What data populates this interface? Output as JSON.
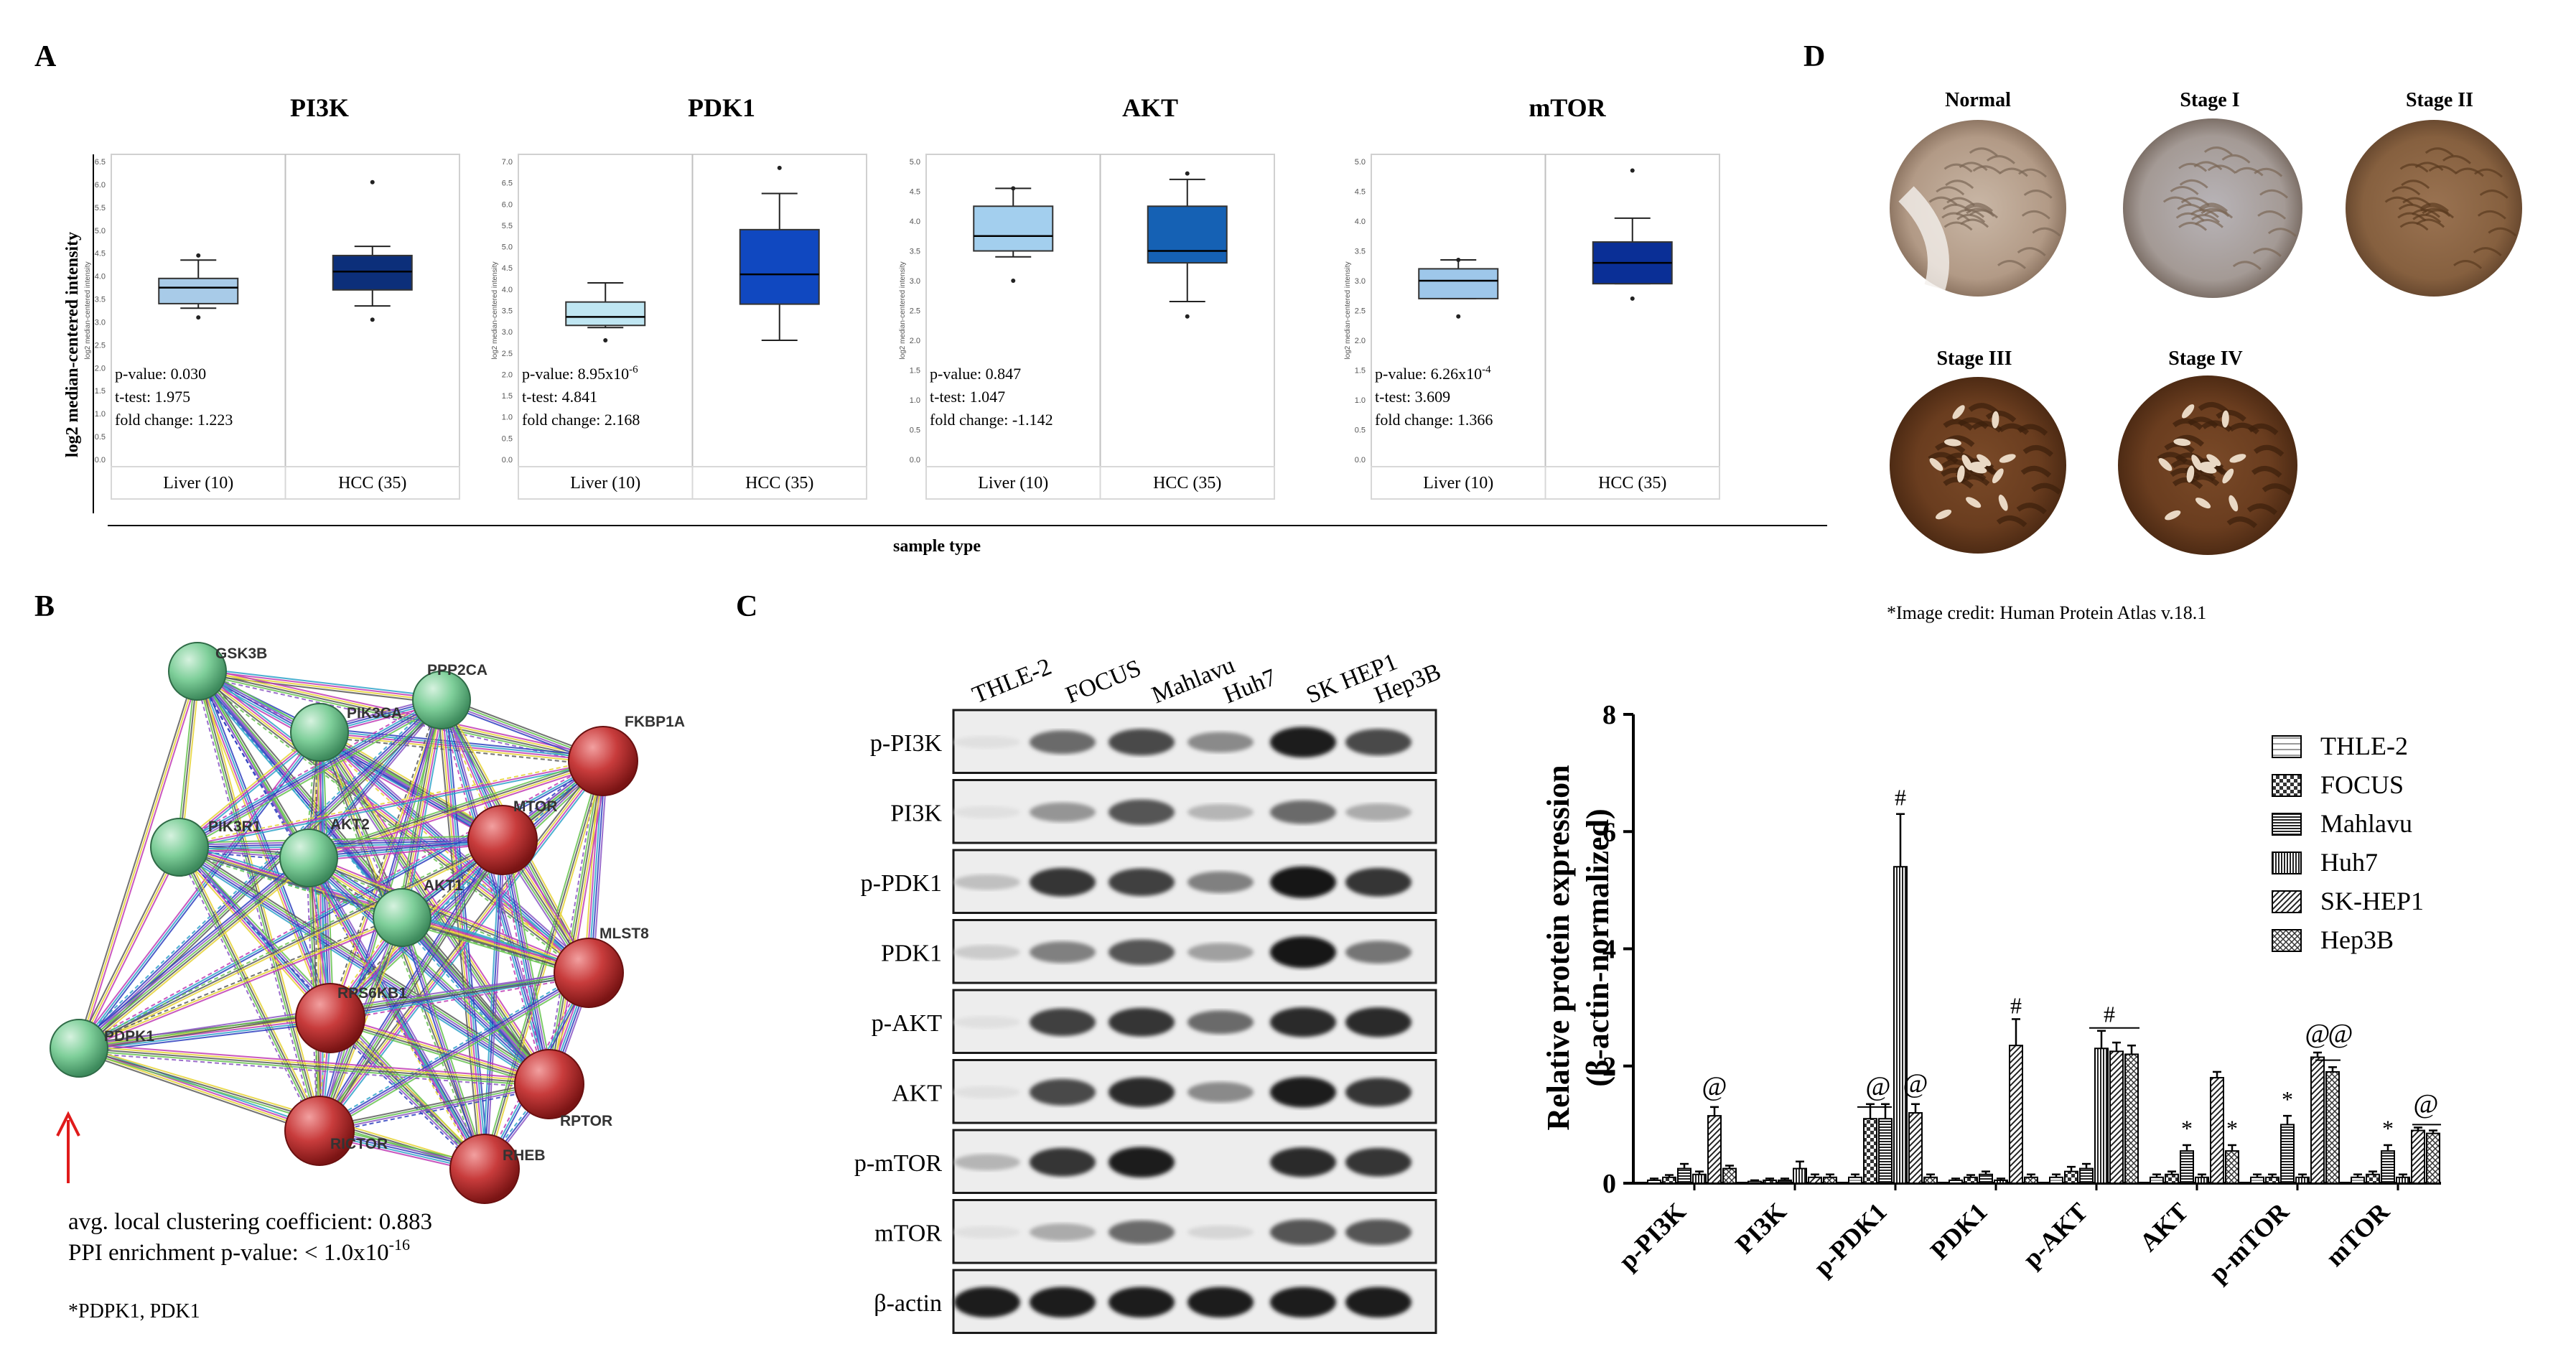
{
  "figure": {
    "panel_a": {
      "label": "A",
      "ylabel": "log2 median-centered intensity",
      "xlabel": "sample type",
      "inner_ylabel": "log2 median-centered intensity",
      "plots": [
        {
          "title": "PI3K",
          "categories": [
            "Liver (10)",
            "HCC (35)"
          ],
          "ticks": [
            "6.5",
            "6.0",
            "5.5",
            "5.0",
            "4.5",
            "4.0",
            "3.5",
            "3.0",
            "2.5",
            "2.0",
            "1.5",
            "1.0",
            "0.5",
            "0.0"
          ],
          "pvalue": "p-value:  0.030",
          "ttest": "t-test:    1.975",
          "fold": "fold change: 1.223"
        },
        {
          "title": "PDK1",
          "categories": [
            "Liver (10)",
            "HCC (35)"
          ],
          "ticks": [
            "7.0",
            "6.5",
            "6.0",
            "5.5",
            "5.0",
            "4.5",
            "4.0",
            "3.5",
            "3.0",
            "2.5",
            "2.0",
            "1.5",
            "1.0",
            "0.5",
            "0.0"
          ],
          "pvalue": "p-value:  8.95x10",
          "pvalue_exp": "-6",
          "ttest": "t-test:    4.841",
          "fold": "fold change: 2.168"
        },
        {
          "title": "AKT",
          "categories": [
            "Liver (10)",
            "HCC (35)"
          ],
          "ticks": [
            "5.0",
            "4.5",
            "4.0",
            "3.5",
            "3.0",
            "2.5",
            "2.0",
            "1.5",
            "1.0",
            "0.5",
            "0.0"
          ],
          "pvalue": "p-value:  0.847",
          "ttest": "t-test:    1.047",
          "fold": "fold change: -1.142"
        },
        {
          "title": "mTOR",
          "categories": [
            "Liver (10)",
            "HCC (35)"
          ],
          "ticks": [
            "5.0",
            "4.5",
            "4.0",
            "3.5",
            "3.0",
            "2.5",
            "2.0",
            "1.5",
            "1.0",
            "0.5",
            "0.0"
          ],
          "pvalue": "p-value:  6.26x10",
          "pvalue_exp": "-4",
          "ttest": " t-test:    3.609",
          "fold": "fold change: 1.366"
        }
      ]
    },
    "panel_b": {
      "label": "B",
      "nodes": [
        "GSK3B",
        "PIK3CA",
        "PPP2CA",
        "FKBP1A",
        "PIK3R1",
        "AKT2",
        "MTOR",
        "AKT1",
        "RPS6KB1",
        "MLST8",
        "PDPK1",
        "RICTOR",
        "RPTOR",
        "RHEB"
      ],
      "clustering": "avg. local clustering coefficient: 0.883",
      "ppi": "PPI enrichment p-value: < 1.0x10",
      "ppi_exp": "-16",
      "footnote": "*PDPK1, PDK1"
    },
    "panel_c": {
      "label": "C",
      "cell_lines": [
        "THLE-2",
        "FOCUS",
        "Mahlavu",
        "Huh7",
        "SK HEP1",
        "Hep3B"
      ],
      "blot_rows": [
        "p-PI3K",
        "PI3K",
        "p-PDK1",
        "PDK1",
        "p-AKT",
        "AKT",
        "p-mTOR",
        "mTOR",
        "β-actin"
      ],
      "ylabel_line1": "Relative protein expression",
      "ylabel_line2": "(β-actin-normalized)",
      "yticks": [
        "0",
        "2",
        "4",
        "6",
        "8"
      ],
      "annotations": [
        "@",
        "@",
        "@",
        "#",
        "#",
        "#",
        "*",
        "*",
        "*",
        "@",
        "@",
        "*",
        "@"
      ],
      "legend": [
        "THLE-2",
        "FOCUS",
        "Mahlavu",
        "Huh7",
        "SK-HEP1",
        "Hep3B"
      ]
    },
    "panel_d": {
      "label": "D",
      "stages": [
        "Normal",
        "Stage I",
        "Stage II",
        "Stage III",
        "Stage IV"
      ],
      "credit": "*Image credit: Human Protein Atlas v.18.1"
    }
  },
  "chart_data": [
    {
      "type": "box",
      "title": "PI3K",
      "categories": [
        "Liver (10)",
        "HCC (35)"
      ],
      "ylim": [
        0,
        6.5
      ],
      "boxes": [
        {
          "whisker_low": 3.3,
          "q1": 3.4,
          "median": 3.75,
          "q3": 3.95,
          "whisker_high": 4.35,
          "outliers": [
            3.1,
            4.45
          ]
        },
        {
          "whisker_low": 3.35,
          "q1": 3.7,
          "median": 4.1,
          "q3": 4.45,
          "whisker_high": 4.65,
          "outliers": [
            3.05,
            6.05
          ]
        }
      ]
    },
    {
      "type": "box",
      "title": "PDK1",
      "categories": [
        "Liver (10)",
        "HCC (35)"
      ],
      "ylim": [
        0,
        7.0
      ],
      "boxes": [
        {
          "whisker_low": 3.1,
          "q1": 3.15,
          "median": 3.35,
          "q3": 3.7,
          "whisker_high": 4.15,
          "outliers": [
            2.8
          ]
        },
        {
          "whisker_low": 2.8,
          "q1": 3.65,
          "median": 4.35,
          "q3": 5.4,
          "whisker_high": 6.25,
          "outliers": [
            6.85
          ]
        }
      ]
    },
    {
      "type": "box",
      "title": "AKT",
      "categories": [
        "Liver (10)",
        "HCC (35)"
      ],
      "ylim": [
        0,
        5.0
      ],
      "boxes": [
        {
          "whisker_low": 3.4,
          "q1": 3.5,
          "median": 3.75,
          "q3": 4.25,
          "whisker_high": 4.55,
          "outliers": [
            3.0,
            4.55
          ]
        },
        {
          "whisker_low": 2.65,
          "q1": 3.3,
          "median": 3.5,
          "q3": 4.25,
          "whisker_high": 4.7,
          "outliers": [
            2.4,
            4.8
          ]
        }
      ]
    },
    {
      "type": "box",
      "title": "mTOR",
      "categories": [
        "Liver (10)",
        "HCC (35)"
      ],
      "ylim": [
        0,
        5.0
      ],
      "boxes": [
        {
          "whisker_low": 2.7,
          "q1": 2.7,
          "median": 3.0,
          "q3": 3.2,
          "whisker_high": 3.35,
          "outliers": [
            2.4,
            3.35
          ]
        },
        {
          "whisker_low": 2.95,
          "q1": 2.95,
          "median": 3.3,
          "q3": 3.65,
          "whisker_high": 4.05,
          "outliers": [
            2.7,
            4.85
          ]
        }
      ]
    },
    {
      "type": "bar",
      "title": "Relative protein expression (β-actin-normalized)",
      "categories": [
        "p-PI3K",
        "PI3K",
        "p-PDK1",
        "PDK1",
        "p-AKT",
        "AKT",
        "p-mTOR",
        "mTOR"
      ],
      "ylabel": "Relative protein expression (β-actin-normalized)",
      "ylim": [
        0,
        8
      ],
      "series": [
        {
          "name": "THLE-2",
          "values": [
            0.05,
            0.03,
            0.1,
            0.05,
            0.1,
            0.1,
            0.1,
            0.1
          ],
          "errors": [
            0.03,
            0.02,
            0.05,
            0.03,
            0.05,
            0.05,
            0.05,
            0.05
          ]
        },
        {
          "name": "FOCUS",
          "values": [
            0.1,
            0.05,
            1.1,
            0.1,
            0.2,
            0.15,
            0.1,
            0.15
          ],
          "errors": [
            0.04,
            0.03,
            0.25,
            0.04,
            0.08,
            0.05,
            0.05,
            0.05
          ]
        },
        {
          "name": "Mahlavu",
          "values": [
            0.25,
            0.05,
            1.1,
            0.15,
            0.25,
            0.55,
            1.0,
            0.55
          ],
          "errors": [
            0.08,
            0.03,
            0.25,
            0.05,
            0.08,
            0.1,
            0.15,
            0.1
          ]
        },
        {
          "name": "Huh7",
          "values": [
            0.15,
            0.25,
            5.4,
            0.05,
            2.3,
            0.1,
            0.1,
            0.1
          ],
          "errors": [
            0.05,
            0.12,
            0.9,
            0.03,
            0.3,
            0.05,
            0.05,
            0.05
          ]
        },
        {
          "name": "SK-HEP1",
          "values": [
            1.15,
            0.1,
            1.2,
            2.35,
            2.25,
            1.8,
            2.15,
            0.9
          ],
          "errors": [
            0.15,
            0.05,
            0.15,
            0.45,
            0.15,
            0.1,
            0.08,
            0.05
          ]
        },
        {
          "name": "Hep3B",
          "values": [
            0.25,
            0.1,
            0.1,
            0.1,
            2.2,
            0.55,
            1.9,
            0.85
          ],
          "errors": [
            0.05,
            0.05,
            0.05,
            0.05,
            0.15,
            0.1,
            0.08,
            0.05
          ]
        }
      ]
    }
  ]
}
